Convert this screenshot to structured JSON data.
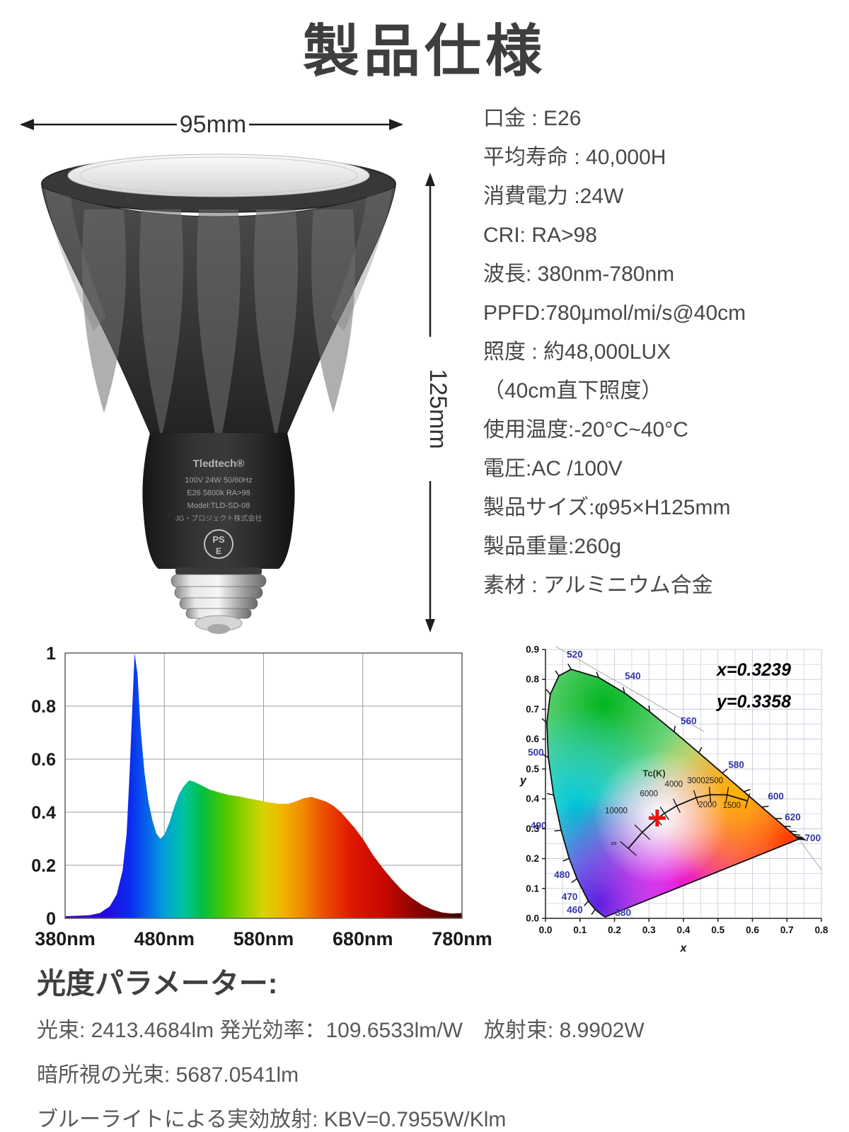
{
  "title": "製品仕様",
  "bulb": {
    "width_label": "95mm",
    "height_label": "125mm",
    "brand": "Tledtech®",
    "label_lines": [
      "100V 24W 50/60Hz",
      "E26 5800k RA>98",
      "Model:TLD-SD-08",
      "JG・プロジェクト株式会社"
    ],
    "pse_top": "PS",
    "pse_bottom": "E"
  },
  "specs": [
    "口金 : E26",
    "平均寿命 : 40,000H",
    "消費電力 :24W",
    "CRI:  RA>98",
    "波長:  380nm-780nm",
    "PPFD:780μmol/mi/s@40cm",
    "照度 : 約48,000LUX",
    "（40cm直下照度）",
    "使用温度:-20°C~40°C",
    "電圧:AC /100V",
    "製品サイズ:φ95×H125mm",
    "製品重量:260g",
    "素材 : アルミニウム合金"
  ],
  "chart_data": [
    {
      "type": "area",
      "name": "relative spectral power distribution",
      "x_range": [
        380,
        780
      ],
      "y_range": [
        0,
        1
      ],
      "x_ticks": [
        "380nm",
        "480nm",
        "580nm",
        "680nm",
        "780nm"
      ],
      "x_tick_values": [
        380,
        480,
        580,
        680,
        780
      ],
      "y_ticks": [
        "1",
        "0.8",
        "0.6",
        "0.4",
        "0.2",
        "0"
      ],
      "y_tick_values": [
        1,
        0.8,
        0.6,
        0.4,
        0.2,
        0
      ],
      "grid": true,
      "points": [
        [
          380,
          0.008
        ],
        [
          395,
          0.01
        ],
        [
          405,
          0.012
        ],
        [
          415,
          0.02
        ],
        [
          425,
          0.045
        ],
        [
          432,
          0.09
        ],
        [
          438,
          0.18
        ],
        [
          442,
          0.32
        ],
        [
          445,
          0.55
        ],
        [
          448,
          0.82
        ],
        [
          450,
          1.0
        ],
        [
          453,
          0.92
        ],
        [
          456,
          0.72
        ],
        [
          460,
          0.55
        ],
        [
          464,
          0.44
        ],
        [
          468,
          0.37
        ],
        [
          472,
          0.32
        ],
        [
          476,
          0.3
        ],
        [
          480,
          0.315
        ],
        [
          485,
          0.36
        ],
        [
          490,
          0.42
        ],
        [
          495,
          0.47
        ],
        [
          500,
          0.5
        ],
        [
          505,
          0.52
        ],
        [
          510,
          0.515
        ],
        [
          518,
          0.5
        ],
        [
          526,
          0.485
        ],
        [
          535,
          0.475
        ],
        [
          545,
          0.465
        ],
        [
          555,
          0.46
        ],
        [
          565,
          0.452
        ],
        [
          575,
          0.445
        ],
        [
          585,
          0.437
        ],
        [
          595,
          0.432
        ],
        [
          605,
          0.432
        ],
        [
          612,
          0.44
        ],
        [
          620,
          0.452
        ],
        [
          628,
          0.458
        ],
        [
          635,
          0.45
        ],
        [
          643,
          0.44
        ],
        [
          650,
          0.425
        ],
        [
          658,
          0.4
        ],
        [
          665,
          0.37
        ],
        [
          672,
          0.34
        ],
        [
          680,
          0.3
        ],
        [
          690,
          0.24
        ],
        [
          700,
          0.19
        ],
        [
          710,
          0.145
        ],
        [
          720,
          0.105
        ],
        [
          730,
          0.075
        ],
        [
          740,
          0.05
        ],
        [
          750,
          0.033
        ],
        [
          760,
          0.022
        ],
        [
          770,
          0.018
        ],
        [
          780,
          0.02
        ]
      ]
    },
    {
      "type": "scatter",
      "name": "CIE 1931 chromaticity diagram",
      "xlabel": "x",
      "ylabel": "y",
      "x_ticks": [
        "0.0",
        "0.1",
        "0.2",
        "0.3",
        "0.4",
        "0.5",
        "0.6",
        "0.7",
        "0.8"
      ],
      "y_ticks": [
        "0.0",
        "0.1",
        "0.2",
        "0.3",
        "0.4",
        "0.5",
        "0.6",
        "0.7",
        "0.8",
        "0.9"
      ],
      "annotations": [
        "x=0.3239",
        "y=0.3358"
      ],
      "white_point": {
        "x": 0.3239,
        "y": 0.3358
      },
      "wavelength_labels": [
        "380",
        "460",
        "470",
        "480",
        "490",
        "500",
        "520",
        "540",
        "560",
        "580",
        "600",
        "620",
        "700"
      ],
      "cct_label": "Tc(K)",
      "cct_ticks": [
        "10000",
        "6000",
        "4000",
        "3000",
        "2500",
        "2000",
        "1500",
        "∞"
      ]
    }
  ],
  "photometric": {
    "heading": "光度パラメーター:",
    "lines": [
      "光束: 2413.4684lm  発光効率：109.6533lm/W　放射束: 8.9902W",
      "暗所視の光束: 5687.0541lm",
      "ブルーライトによる実効放射: KBV=0.7955W/Klm"
    ]
  }
}
